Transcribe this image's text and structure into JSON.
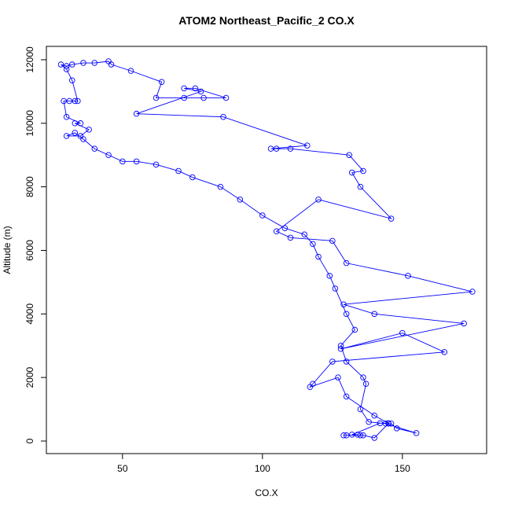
{
  "chart_data": {
    "type": "line",
    "title": "ATOM2 Northeast_Pacific_2 CO.X",
    "x_label": "CO.X",
    "y_label": "Altitude (m)",
    "color": "#0000ff",
    "markers": true,
    "grid": false,
    "xlim": [
      22.8,
      180.1
    ],
    "ylim": [
      -396,
      12420
    ],
    "xticks": [
      50,
      100,
      150
    ],
    "yticks": [
      0,
      2000,
      4000,
      6000,
      8000,
      10000,
      12000
    ],
    "x": [
      130,
      129,
      135,
      136,
      140,
      145,
      146,
      148,
      155,
      144,
      138,
      135,
      137,
      136,
      130,
      128,
      133,
      130,
      126,
      124,
      120,
      118,
      115,
      108,
      100,
      92,
      85,
      75,
      70,
      62,
      55,
      50,
      45,
      40,
      36,
      33,
      30,
      35,
      38,
      33,
      35,
      30,
      29,
      33,
      31,
      34,
      32,
      30,
      28,
      30,
      32,
      36,
      40,
      45,
      46,
      53,
      64,
      62,
      72,
      79,
      87,
      76,
      72,
      78,
      55,
      86,
      116,
      103,
      105,
      110,
      131,
      136,
      132,
      135,
      146,
      120,
      105,
      110,
      125,
      130,
      152,
      175,
      129,
      140,
      172,
      128,
      150,
      165,
      125,
      118,
      117,
      127,
      130,
      140,
      145,
      142,
      132,
      134
    ],
    "y": [
      180,
      180,
      180,
      180,
      100,
      550,
      550,
      400,
      250,
      550,
      600,
      1000,
      1800,
      2000,
      2500,
      3000,
      3500,
      4000,
      4800,
      5200,
      5800,
      6200,
      6500,
      6700,
      7100,
      7600,
      8000,
      8300,
      8500,
      8700,
      8800,
      8800,
      9000,
      9200,
      9500,
      9700,
      9600,
      9600,
      9800,
      10000,
      10000,
      10200,
      10700,
      10700,
      10700,
      10700,
      11350,
      11700,
      11850,
      11800,
      11850,
      11900,
      11900,
      11950,
      11850,
      11650,
      11300,
      10800,
      10800,
      10800,
      10800,
      11100,
      11100,
      11000,
      10300,
      10200,
      9300,
      9200,
      9200,
      9200,
      9000,
      8500,
      8450,
      8000,
      7000,
      7600,
      6600,
      6400,
      6300,
      5600,
      5200,
      4700,
      4300,
      4000,
      3700,
      2900,
      3400,
      2800,
      2500,
      1800,
      1700,
      2000,
      1400,
      800,
      560,
      560,
      200,
      200
    ]
  }
}
